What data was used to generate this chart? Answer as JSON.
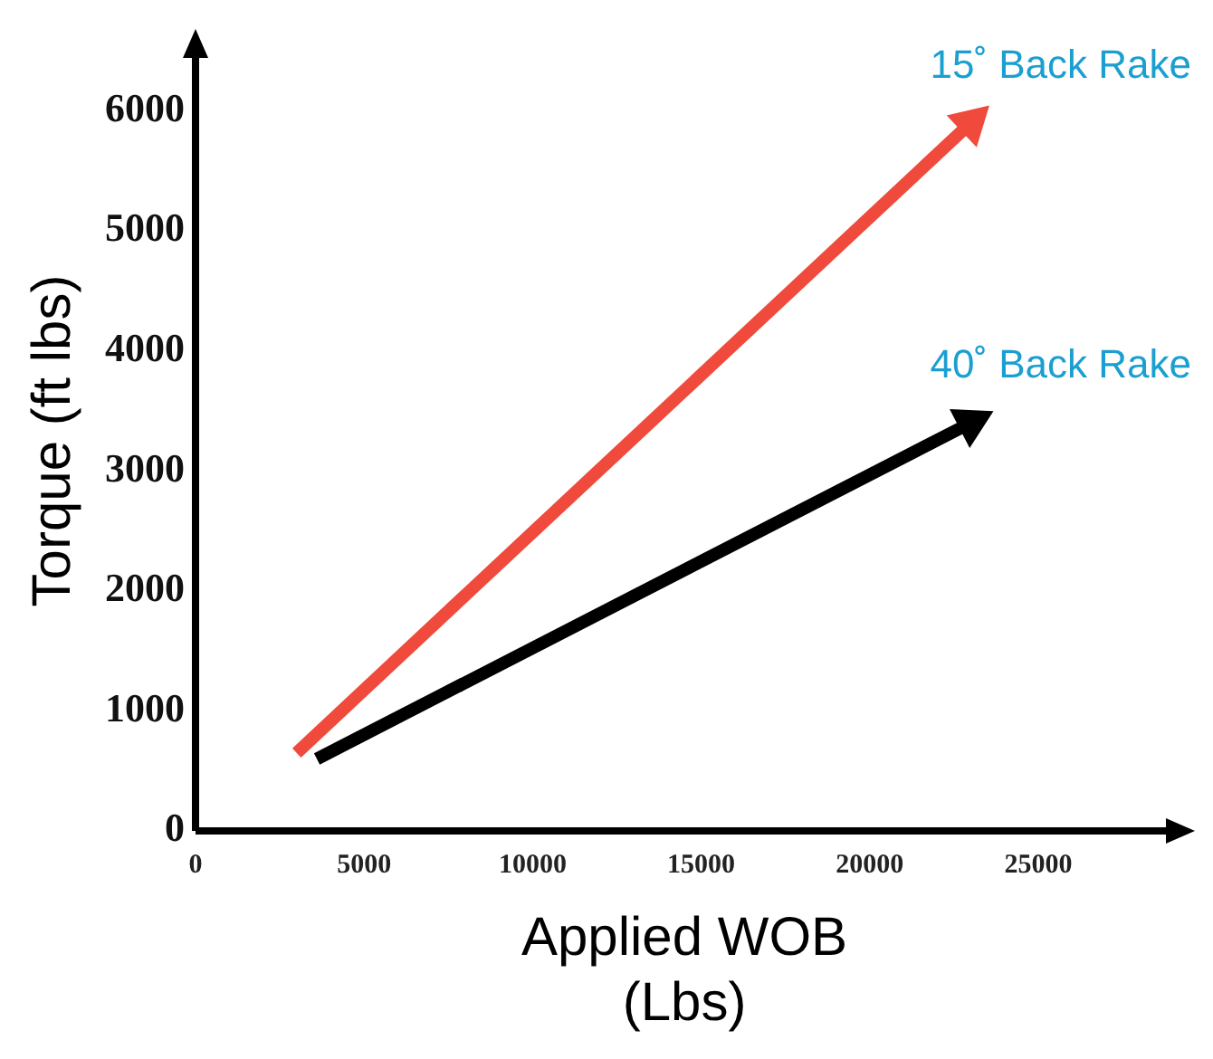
{
  "chart_data": {
    "type": "line",
    "xlabel": "Applied WOB\n(Lbs)",
    "ylabel": "Torque (ft lbs)",
    "xlim": [
      0,
      29000
    ],
    "ylim": [
      0,
      6500
    ],
    "xticks": [
      0,
      5000,
      10000,
      15000,
      20000,
      25000
    ],
    "yticks": [
      0,
      1000,
      2000,
      3000,
      4000,
      5000,
      6000
    ],
    "grid": false,
    "legend": false,
    "line_style": "solid",
    "series": [
      {
        "name": "15˚ Back Rake",
        "color": "#f04a3c",
        "x": [
          3000,
          23000
        ],
        "values": [
          650,
          5900
        ]
      },
      {
        "name": "40˚ Back Rake",
        "color": "#000000",
        "x": [
          3600,
          23000
        ],
        "values": [
          600,
          3400
        ]
      }
    ]
  }
}
